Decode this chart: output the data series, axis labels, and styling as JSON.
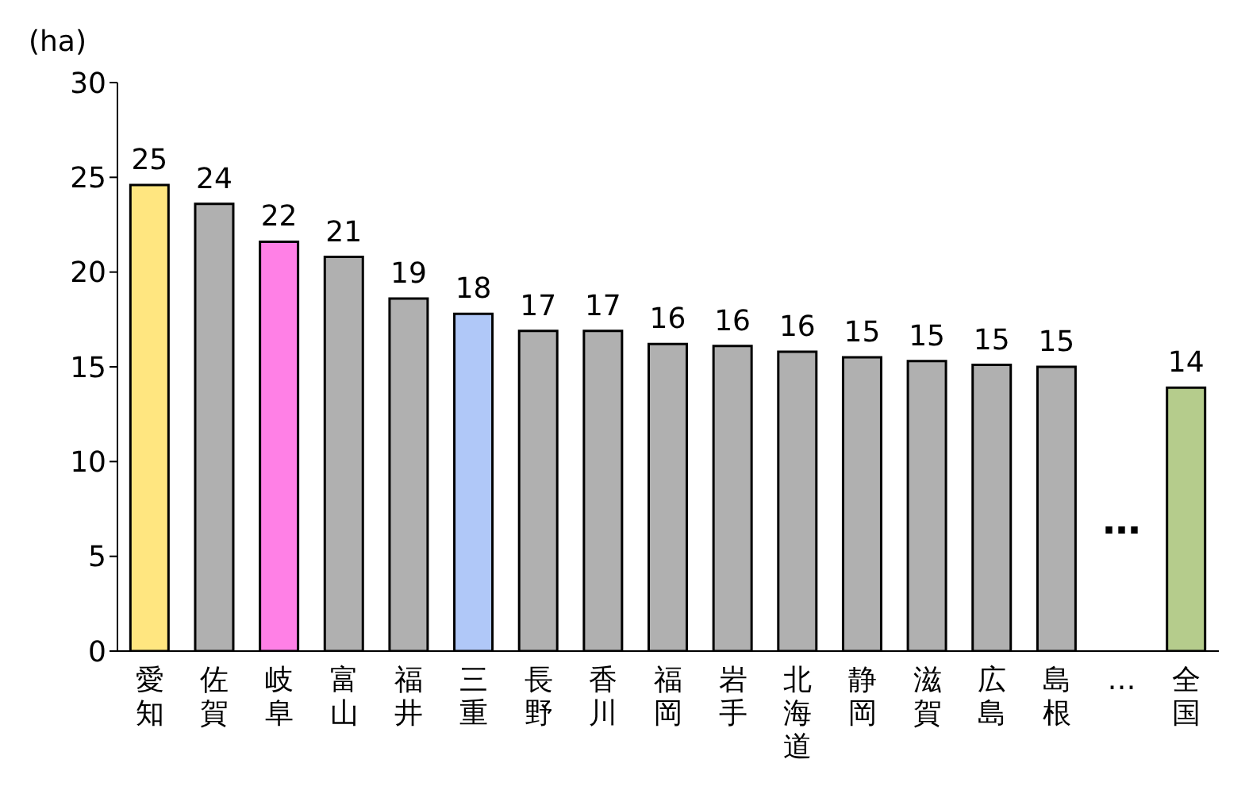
{
  "chart_data": {
    "type": "bar",
    "ylabel": "(ha)",
    "categories": [
      "愛知",
      "佐賀",
      "岐阜",
      "富山",
      "福井",
      "三重",
      "長野",
      "香川",
      "福岡",
      "岩手",
      "北海道",
      "静岡",
      "滋賀",
      "広島",
      "島根",
      "…",
      "全国"
    ],
    "values": [
      24.6,
      23.6,
      21.6,
      20.8,
      18.6,
      17.8,
      16.9,
      16.9,
      16.2,
      16.1,
      15.8,
      15.5,
      15.3,
      15.1,
      15.0,
      null,
      13.9
    ],
    "value_labels": [
      "25",
      "24",
      "22",
      "21",
      "19",
      "18",
      "17",
      "17",
      "16",
      "16",
      "16",
      "15",
      "15",
      "15",
      "15",
      null,
      "14"
    ],
    "colors": [
      "#ffe680",
      "#b0b0b0",
      "#ff80e6",
      "#b0b0b0",
      "#b0b0b0",
      "#b0c8f8",
      "#b0b0b0",
      "#b0b0b0",
      "#b0b0b0",
      "#b0b0b0",
      "#b0b0b0",
      "#b0b0b0",
      "#b0b0b0",
      "#b0b0b0",
      "#b0b0b0",
      "#b0b0b0",
      "#b5cc8c"
    ],
    "annotations": [
      "…"
    ],
    "ylim": [
      0,
      30
    ],
    "yticks": [
      0,
      5,
      10,
      15,
      20,
      25,
      30
    ],
    "grid": false,
    "legend": false
  }
}
